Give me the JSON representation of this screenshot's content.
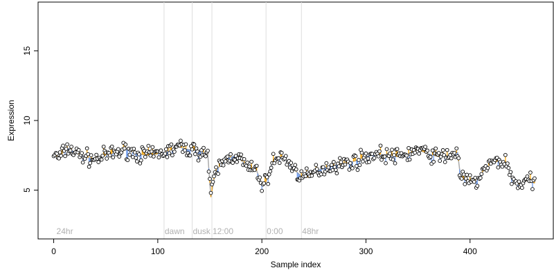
{
  "chart_data": {
    "type": "scatter",
    "xlabel": "Sample index",
    "ylabel": "Expression",
    "xlim": [
      -15,
      480
    ],
    "ylim": [
      1.5,
      18.5
    ],
    "xticks": [
      0,
      100,
      200,
      300,
      400
    ],
    "yticks": [
      5,
      10,
      15
    ],
    "grid": false,
    "segment_colors": {
      "above": "#ffa500",
      "below": "#6495ed",
      "baseline": "#a9a9a9"
    },
    "point_style": {
      "fill": "#ffffff",
      "stroke": "#000000"
    },
    "annotations": [
      {
        "x": 2,
        "label": "24hr"
      },
      {
        "x": 106,
        "label": "dawn"
      },
      {
        "x": 133,
        "label": "dusk"
      },
      {
        "x": 152,
        "label": "12:00"
      },
      {
        "x": 204,
        "label": "0:00"
      },
      {
        "x": 238,
        "label": "48hr"
      }
    ],
    "vlines": [
      106,
      133,
      152,
      204,
      238
    ],
    "anchors": [
      [
        0,
        7.6
      ],
      [
        5,
        7.3
      ],
      [
        10,
        7.8
      ],
      [
        15,
        8.0
      ],
      [
        20,
        7.7
      ],
      [
        30,
        7.4
      ],
      [
        40,
        7.2
      ],
      [
        50,
        7.5
      ],
      [
        60,
        7.7
      ],
      [
        70,
        7.9
      ],
      [
        80,
        7.6
      ],
      [
        90,
        7.5
      ],
      [
        100,
        7.6
      ],
      [
        110,
        7.8
      ],
      [
        120,
        8.1
      ],
      [
        130,
        7.9
      ],
      [
        140,
        7.8
      ],
      [
        148,
        7.6
      ],
      [
        151,
        4.5
      ],
      [
        155,
        6.2
      ],
      [
        160,
        6.8
      ],
      [
        168,
        7.3
      ],
      [
        175,
        7.5
      ],
      [
        182,
        7.0
      ],
      [
        188,
        6.5
      ],
      [
        195,
        6.4
      ],
      [
        200,
        5.4
      ],
      [
        204,
        5.6
      ],
      [
        210,
        7.0
      ],
      [
        218,
        7.4
      ],
      [
        225,
        7.1
      ],
      [
        232,
        6.4
      ],
      [
        238,
        6.0
      ],
      [
        245,
        5.9
      ],
      [
        250,
        6.3
      ],
      [
        260,
        6.6
      ],
      [
        270,
        6.8
      ],
      [
        280,
        6.9
      ],
      [
        290,
        7.1
      ],
      [
        300,
        7.4
      ],
      [
        310,
        7.6
      ],
      [
        320,
        7.5
      ],
      [
        330,
        7.4
      ],
      [
        340,
        7.6
      ],
      [
        350,
        7.9
      ],
      [
        360,
        7.6
      ],
      [
        370,
        7.4
      ],
      [
        380,
        7.5
      ],
      [
        388,
        7.7
      ],
      [
        391,
        5.9
      ],
      [
        398,
        5.6
      ],
      [
        405,
        5.5
      ],
      [
        412,
        6.3
      ],
      [
        420,
        6.9
      ],
      [
        428,
        7.1
      ],
      [
        435,
        7.0
      ],
      [
        440,
        5.8
      ],
      [
        448,
        5.4
      ],
      [
        455,
        5.7
      ],
      [
        462,
        5.5
      ]
    ]
  }
}
